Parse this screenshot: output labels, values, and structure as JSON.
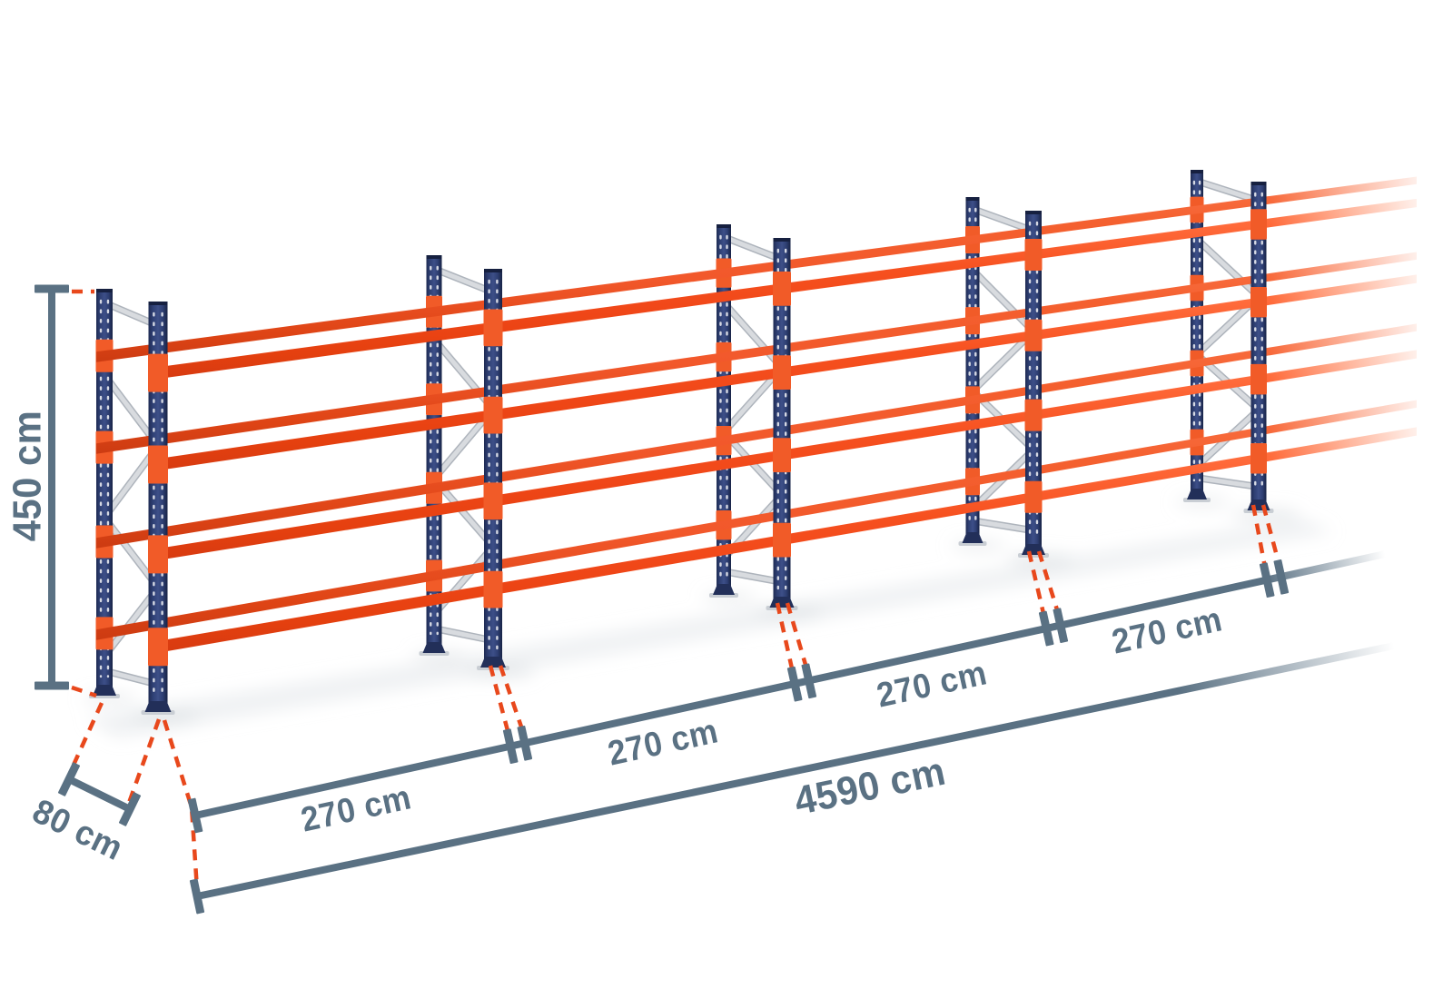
{
  "illustration": {
    "subject": "pallet-racking-row",
    "frames_visible": 5,
    "beam_levels": 4,
    "bays_visible": 4,
    "continues_right": true
  },
  "dimensions": {
    "height_label": "450 cm",
    "depth_label": "80 cm",
    "bay_labels": [
      "270 cm",
      "270 cm",
      "270 cm",
      "270 cm"
    ],
    "total_label": "4590 cm"
  },
  "colors": {
    "background": "#ffffff",
    "beam_orange": "#f6501f",
    "beam_orange_light": "#ff6a3a",
    "beam_orange_dark": "#d63a10",
    "rear_beam_orange": "#f2582b",
    "upright_navy": "#2e3f73",
    "upright_navy_light": "#3d4f88",
    "upright_navy_dark": "#1d2a52",
    "brace_silver": "#d8dbdf",
    "brace_silver_shadow": "#aeb4bc",
    "connector_orange": "#f15b28",
    "dimension_slate": "#5a7183",
    "leader_red": "#e8481c",
    "floor_shadow": "#e2e6e9"
  }
}
